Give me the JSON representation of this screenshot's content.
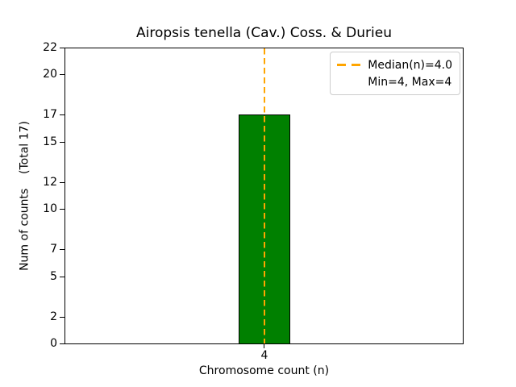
{
  "figure": {
    "background": "#ffffff"
  },
  "chart_data": {
    "type": "bar",
    "title": "Airopsis tenella (Cav.) Coss. & Durieu",
    "xlabel": "Chromosome count (n)",
    "ylabel": "Num of counts    (Total 17)",
    "categories": [
      "4"
    ],
    "values": [
      17
    ],
    "total_counts": 17,
    "ylim": [
      0,
      22
    ],
    "yticks": [
      0,
      2,
      5,
      7,
      10,
      12,
      15,
      17,
      20,
      22
    ],
    "grid": false,
    "bar_color": "#008000",
    "bar_edge_color": "#000000",
    "median_line": {
      "value": 4.0,
      "color": "#ffa500",
      "style": "dashed"
    },
    "legend": {
      "position": "upper-right",
      "entries": [
        {
          "handle": "dashed-line",
          "color": "#ffa500",
          "label": "Median(n)=4.0"
        },
        {
          "handle": "none",
          "color": "",
          "label": "Min=4, Max=4"
        }
      ]
    }
  }
}
